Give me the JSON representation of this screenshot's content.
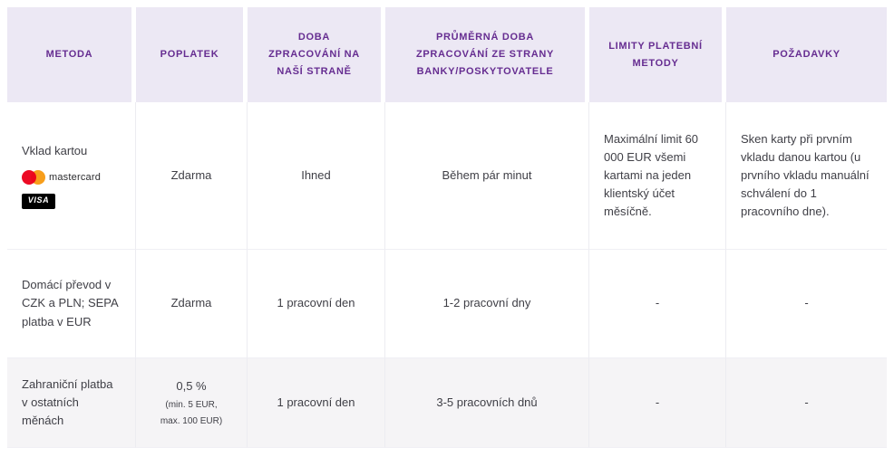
{
  "table": {
    "headers": [
      "METODA",
      "POPLATEK",
      "DOBA ZPRACOVÁNÍ NA NAŠÍ STRANĚ",
      "PRŮMĚRNÁ DOBA ZPRACOVÁNÍ ZE STRANY BANKY/POSKYTOVATELE",
      "LIMITY PLATEBNÍ METODY",
      "POŽADAVKY"
    ],
    "rows": [
      {
        "method": "Vklad kartou",
        "fee": "Zdarma",
        "processing_internal": "Ihned",
        "processing_external": "Během pár minut",
        "limits": "Maximální limit 60 000 EUR všemi kartami na jeden klientský účet měsíčně.",
        "requirements": "Sken karty při prvním vkladu danou kartou (u prvního vkladu manuální schválení do 1 pracovního dne)."
      },
      {
        "method": "Domácí převod v CZK a PLN; SEPA platba v EUR",
        "fee": "Zdarma",
        "processing_internal": "1 pracovní den",
        "processing_external": "1-2 pracovní dny",
        "limits": "-",
        "requirements": "-"
      },
      {
        "method": "Zahraniční platba v ostatních měnách",
        "fee": "0,5 %",
        "fee_note_line1": "(min. 5 EUR,",
        "fee_note_line2": "max. 100 EUR)",
        "processing_internal": "1 pracovní den",
        "processing_external": "3-5 pracovních dnů",
        "limits": "-",
        "requirements": "-"
      }
    ]
  },
  "logos": {
    "mastercard": "mastercard",
    "visa": "VISA"
  },
  "colors": {
    "header_bg": "#ece8f4",
    "header_text": "#662d91",
    "body_text": "#3f3f46",
    "row_alt_bg": "#f5f4f6",
    "mastercard_red": "#eb001b",
    "mastercard_orange": "#f79e1b",
    "visa_bg": "#000000"
  }
}
